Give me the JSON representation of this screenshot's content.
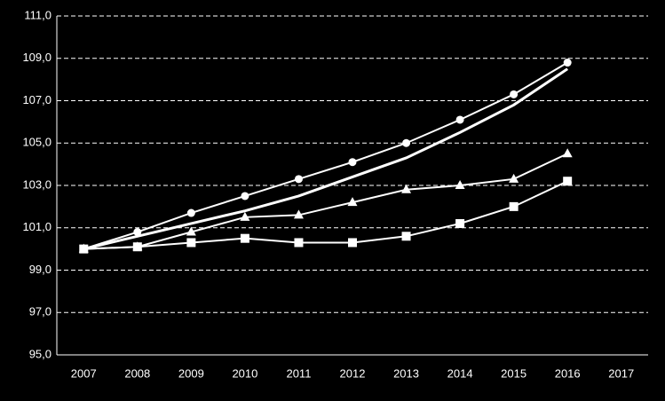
{
  "chart_data": {
    "type": "line",
    "categories": [
      "2007",
      "2008",
      "2009",
      "2010",
      "2011",
      "2012",
      "2013",
      "2014",
      "2015",
      "2016",
      "2017"
    ],
    "series": [
      {
        "color": "#ffffff",
        "marker": "circle",
        "values": [
          100,
          100.8,
          101.7,
          102.5,
          103.3,
          104.1,
          105.0,
          106.1,
          107.3,
          108.8,
          null
        ]
      },
      {
        "color": "#ffffff",
        "marker": "none",
        "values": [
          100,
          100.6,
          101.2,
          101.8,
          102.5,
          103.4,
          104.3,
          105.5,
          106.8,
          108.5,
          null
        ]
      },
      {
        "color": "#ffffff",
        "marker": "triangle",
        "values": [
          100,
          100.1,
          100.8,
          101.5,
          101.6,
          102.2,
          102.8,
          103.0,
          103.3,
          104.5,
          null
        ]
      },
      {
        "color": "#ffffff",
        "marker": "square",
        "values": [
          100,
          100.1,
          100.3,
          100.5,
          100.3,
          100.3,
          100.6,
          101.2,
          102.0,
          103.2,
          null
        ]
      }
    ],
    "ylim": [
      95,
      111
    ],
    "yticks": [
      {
        "value": 95,
        "label": "95,0"
      },
      {
        "value": 97,
        "label": "97,0"
      },
      {
        "value": 99,
        "label": "99,0"
      },
      {
        "value": 101,
        "label": "101,0"
      },
      {
        "value": 103,
        "label": "103,0"
      },
      {
        "value": 105,
        "label": "105,0"
      },
      {
        "value": 107,
        "label": "107,0"
      },
      {
        "value": 109,
        "label": "109,0"
      },
      {
        "value": 111,
        "label": "111,0"
      }
    ],
    "grid": true
  }
}
